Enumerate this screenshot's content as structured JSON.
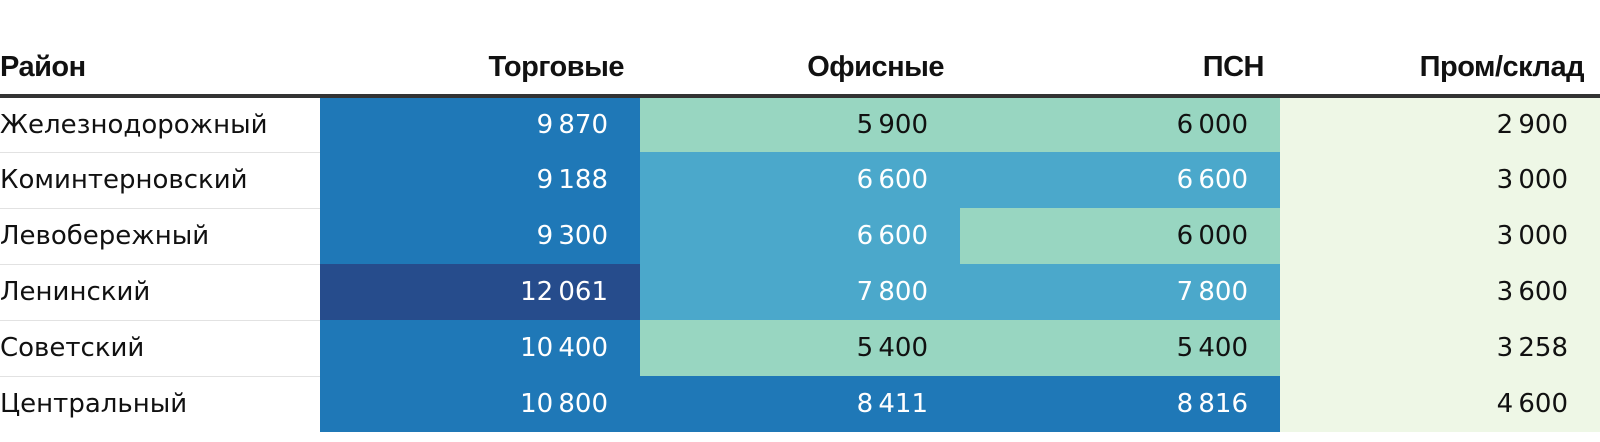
{
  "chart_data": {
    "type": "table",
    "columns": [
      "Район",
      "Торговые",
      "Офисные",
      "ПСН",
      "Пром/склад"
    ],
    "rows": [
      {
        "district": "Железнодорожный",
        "values": [
          9870,
          5900,
          6000,
          2900
        ]
      },
      {
        "district": "Коминтерновский",
        "values": [
          9188,
          6600,
          6600,
          3000
        ]
      },
      {
        "district": "Левобережный",
        "values": [
          9300,
          6600,
          6000,
          3000
        ]
      },
      {
        "district": "Ленинский",
        "values": [
          12061,
          7800,
          7800,
          3600
        ]
      },
      {
        "district": "Советский",
        "values": [
          10400,
          5400,
          5400,
          3258
        ]
      },
      {
        "district": "Центральный",
        "values": [
          10800,
          8411,
          8816,
          4600
        ]
      }
    ],
    "color_scale": {
      "bins": [
        {
          "min": 0,
          "max": 4999,
          "color": "#eef7e6",
          "text_color": "#111111"
        },
        {
          "min": 5000,
          "max": 6099,
          "color": "#98d6c1",
          "text_color": "#111111"
        },
        {
          "min": 6100,
          "max": 7999,
          "color": "#4ba8cb",
          "text_color": "#ffffff"
        },
        {
          "min": 8000,
          "max": 10999,
          "color": "#1f78b7",
          "text_color": "#ffffff"
        },
        {
          "min": 11000,
          "max": 100000,
          "color": "#264c8c",
          "text_color": "#ffffff"
        }
      ]
    }
  }
}
